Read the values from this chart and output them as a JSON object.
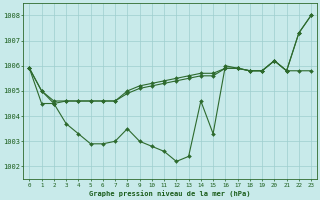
{
  "title": "Graphe pression niveau de la mer (hPa)",
  "hours": [
    0,
    1,
    2,
    3,
    4,
    5,
    6,
    7,
    8,
    9,
    10,
    11,
    12,
    13,
    14,
    15,
    16,
    17,
    18,
    19,
    20,
    21,
    22,
    23
  ],
  "line1": [
    1005.9,
    1005.0,
    1004.5,
    1004.6,
    1004.6,
    1004.6,
    1004.6,
    1004.6,
    1004.9,
    1005.1,
    1005.2,
    1005.3,
    1005.4,
    1005.5,
    1005.6,
    1005.6,
    1005.9,
    1005.9,
    1005.8,
    1005.8,
    1006.2,
    1005.8,
    1005.8,
    1005.8
  ],
  "line2": [
    1005.9,
    1004.5,
    1004.5,
    1003.7,
    1003.3,
    1002.9,
    1002.9,
    1003.0,
    1003.5,
    1003.0,
    1002.8,
    1002.6,
    1002.2,
    1002.4,
    1004.6,
    1003.3,
    1006.0,
    1005.9,
    1005.8,
    1005.8,
    1006.2,
    1005.8,
    1007.3,
    1008.0
  ],
  "line3": [
    1005.9,
    1005.0,
    1004.6,
    1004.6,
    1004.6,
    1004.6,
    1004.6,
    1004.6,
    1005.0,
    1005.2,
    1005.3,
    1005.4,
    1005.5,
    1005.6,
    1005.7,
    1005.7,
    1005.9,
    1005.9,
    1005.8,
    1005.8,
    1006.2,
    1005.8,
    1007.3,
    1008.0
  ],
  "ylim": [
    1001.5,
    1008.5
  ],
  "yticks": [
    1002,
    1003,
    1004,
    1005,
    1006,
    1007,
    1008
  ],
  "line_color": "#2d6a2d",
  "bg_color": "#c8eaea",
  "grid_color": "#9ecece",
  "text_color": "#1a5c1a",
  "spine_color": "#2d6a2d"
}
